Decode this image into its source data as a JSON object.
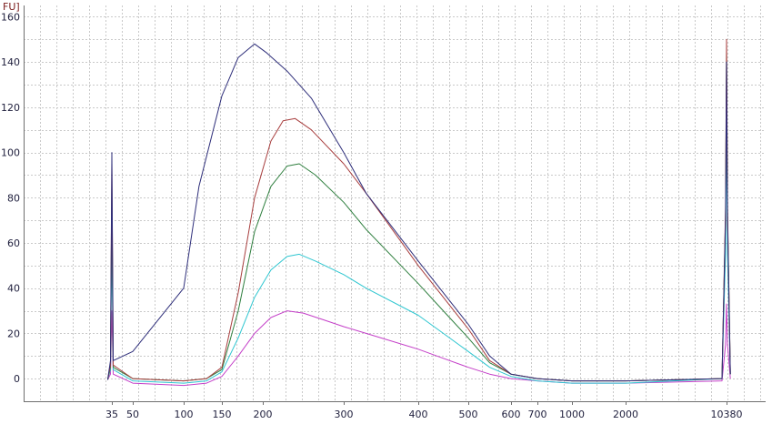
{
  "chart_data": {
    "type": "line",
    "y_unit_label": "FU]",
    "ylim": [
      -10,
      165
    ],
    "y_ticks": [
      0,
      20,
      40,
      60,
      80,
      100,
      120,
      140,
      160
    ],
    "x_ticks": [
      "35",
      "50",
      "100",
      "150",
      "200",
      "300",
      "400",
      "500",
      "600",
      "700",
      "1000",
      "2000",
      "10380"
    ],
    "grid": true,
    "legend": "none",
    "colors": [
      "#2e2e7a",
      "#a83e3e",
      "#2f7f3f",
      "#2ec6d0",
      "#c43fc8"
    ],
    "series": [
      {
        "color": "#2e2e7a",
        "points": [
          [
            32,
            -0.5
          ],
          [
            34,
            8
          ],
          [
            35,
            100
          ],
          [
            36,
            8
          ],
          [
            50,
            12
          ],
          [
            100,
            40
          ],
          [
            120,
            85
          ],
          [
            150,
            125
          ],
          [
            170,
            142
          ],
          [
            190,
            148
          ],
          [
            205,
            144
          ],
          [
            230,
            136
          ],
          [
            260,
            124
          ],
          [
            300,
            100
          ],
          [
            330,
            82
          ],
          [
            400,
            52
          ],
          [
            450,
            38
          ],
          [
            500,
            24
          ],
          [
            550,
            10
          ],
          [
            600,
            2
          ],
          [
            700,
            0
          ],
          [
            1000,
            -1
          ],
          [
            2000,
            -1
          ],
          [
            10000,
            0
          ],
          [
            10300,
            70
          ],
          [
            10380,
            140
          ],
          [
            10460,
            70
          ],
          [
            10700,
            2
          ]
        ]
      },
      {
        "color": "#a83e3e",
        "points": [
          [
            32,
            -0.5
          ],
          [
            34,
            6
          ],
          [
            35,
            95
          ],
          [
            36,
            6
          ],
          [
            50,
            0
          ],
          [
            100,
            -1
          ],
          [
            130,
            0
          ],
          [
            150,
            5
          ],
          [
            170,
            38
          ],
          [
            190,
            80
          ],
          [
            210,
            105
          ],
          [
            225,
            114
          ],
          [
            240,
            115
          ],
          [
            260,
            110
          ],
          [
            300,
            95
          ],
          [
            330,
            82
          ],
          [
            400,
            50
          ],
          [
            450,
            36
          ],
          [
            500,
            22
          ],
          [
            550,
            8
          ],
          [
            600,
            2
          ],
          [
            700,
            0
          ],
          [
            1000,
            -1
          ],
          [
            2000,
            -1
          ],
          [
            10000,
            0
          ],
          [
            10300,
            75
          ],
          [
            10380,
            150
          ],
          [
            10460,
            75
          ],
          [
            10700,
            2
          ]
        ]
      },
      {
        "color": "#2f7f3f",
        "points": [
          [
            32,
            -0.5
          ],
          [
            34,
            5
          ],
          [
            35,
            85
          ],
          [
            36,
            5
          ],
          [
            50,
            0
          ],
          [
            100,
            -1
          ],
          [
            130,
            0
          ],
          [
            150,
            4
          ],
          [
            170,
            30
          ],
          [
            190,
            65
          ],
          [
            210,
            85
          ],
          [
            230,
            94
          ],
          [
            245,
            95
          ],
          [
            265,
            90
          ],
          [
            300,
            78
          ],
          [
            330,
            66
          ],
          [
            400,
            42
          ],
          [
            450,
            30
          ],
          [
            500,
            18
          ],
          [
            550,
            7
          ],
          [
            600,
            2
          ],
          [
            700,
            0
          ],
          [
            1000,
            -1
          ],
          [
            2000,
            -1
          ],
          [
            10000,
            0
          ],
          [
            10300,
            72
          ],
          [
            10380,
            145
          ],
          [
            10460,
            72
          ],
          [
            10700,
            2
          ]
        ]
      },
      {
        "color": "#2ec6d0",
        "points": [
          [
            32,
            -0.5
          ],
          [
            34,
            4
          ],
          [
            35,
            60
          ],
          [
            36,
            4
          ],
          [
            50,
            -1
          ],
          [
            100,
            -2
          ],
          [
            130,
            -1
          ],
          [
            150,
            3
          ],
          [
            170,
            18
          ],
          [
            190,
            36
          ],
          [
            210,
            48
          ],
          [
            230,
            54
          ],
          [
            245,
            55
          ],
          [
            265,
            52
          ],
          [
            300,
            46
          ],
          [
            330,
            40
          ],
          [
            400,
            28
          ],
          [
            450,
            20
          ],
          [
            500,
            12
          ],
          [
            550,
            5
          ],
          [
            600,
            1
          ],
          [
            700,
            -1
          ],
          [
            1000,
            -2
          ],
          [
            2000,
            -2
          ],
          [
            10000,
            0
          ],
          [
            10300,
            55
          ],
          [
            10380,
            120
          ],
          [
            10460,
            55
          ],
          [
            10700,
            2
          ]
        ]
      },
      {
        "color": "#c43fc8",
        "points": [
          [
            32,
            -0.5
          ],
          [
            34,
            2
          ],
          [
            35,
            30
          ],
          [
            36,
            2
          ],
          [
            50,
            -2
          ],
          [
            100,
            -3
          ],
          [
            130,
            -2
          ],
          [
            150,
            1
          ],
          [
            170,
            10
          ],
          [
            190,
            20
          ],
          [
            210,
            27
          ],
          [
            230,
            30
          ],
          [
            250,
            29
          ],
          [
            275,
            26
          ],
          [
            300,
            23
          ],
          [
            330,
            20
          ],
          [
            400,
            13
          ],
          [
            450,
            9
          ],
          [
            500,
            5
          ],
          [
            550,
            2
          ],
          [
            600,
            0
          ],
          [
            700,
            -1
          ],
          [
            1000,
            -2
          ],
          [
            2000,
            -2
          ],
          [
            10000,
            -1
          ],
          [
            10300,
            15
          ],
          [
            10380,
            33
          ],
          [
            10460,
            15
          ],
          [
            10700,
            0
          ]
        ]
      }
    ]
  }
}
